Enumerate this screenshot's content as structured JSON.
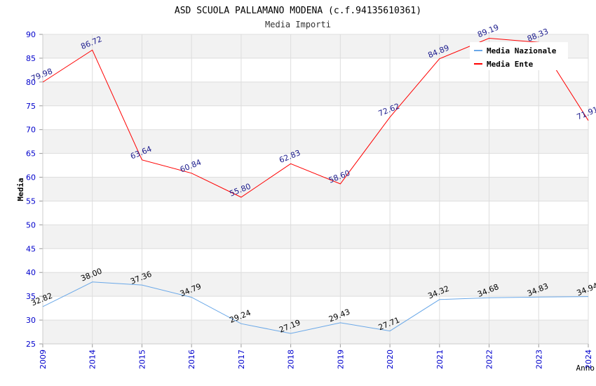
{
  "chart_data": {
    "type": "line",
    "title": "ASD SCUOLA PALLAMANO MODENA (c.f.94135610361)",
    "subtitle": "Media Importi",
    "xlabel": "Anno",
    "ylabel": "Media",
    "ylim": [
      25,
      90
    ],
    "yticks": [
      25,
      30,
      35,
      40,
      45,
      50,
      55,
      60,
      65,
      70,
      75,
      80,
      85,
      90
    ],
    "categories": [
      "2009",
      "2014",
      "2015",
      "2016",
      "2017",
      "2018",
      "2019",
      "2020",
      "2021",
      "2022",
      "2023",
      "2024"
    ],
    "grid": true,
    "legend_position": "top-right",
    "series": [
      {
        "name": "Media Nazionale",
        "color": "#6aa8e8",
        "values": [
          32.82,
          38.0,
          37.36,
          34.79,
          29.24,
          27.19,
          29.43,
          27.71,
          34.32,
          34.68,
          34.83,
          34.94
        ],
        "labels": [
          "32.82",
          "38.00",
          "37.36",
          "34.79",
          "29.24",
          "27.19",
          "29.43",
          "27.71",
          "34.32",
          "34.68",
          "34.83",
          "34.94"
        ],
        "label_color": "#000000"
      },
      {
        "name": "Media Ente",
        "color": "#ff0000",
        "values": [
          79.98,
          86.72,
          63.64,
          60.84,
          55.8,
          62.83,
          58.6,
          72.62,
          84.89,
          89.19,
          88.33,
          71.91
        ],
        "labels": [
          "79.98",
          "86.72",
          "63.64",
          "60.84",
          "55.80",
          "62.83",
          "58.60",
          "72.62",
          "84.89",
          "89.19",
          "88.33",
          "71.91"
        ],
        "label_color": "#1a1a8c"
      }
    ]
  },
  "colors": {
    "axis_tick_text": "#0000cc",
    "band_fill": "#f2f2f2",
    "grid_line": "#dddddd"
  }
}
